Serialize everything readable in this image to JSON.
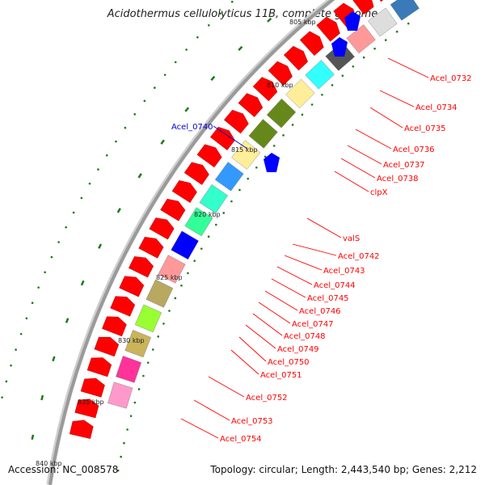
{
  "title": "Acidothermus cellulolyticus 11B, complete genome",
  "footer": {
    "accession_label": "Accession: NC_008578",
    "summary": "Topology: circular; Length: 2,443,540 bp; Genes: 2,212"
  },
  "colors": {
    "backbone": "#9a9a9a",
    "forward_gene": "#ff0000",
    "reverse_gene": "#0000ff",
    "tick": "#1b7a1b",
    "label_forward": "#ff0000",
    "label_reverse": "#0000cc"
  },
  "scale_labels": [
    "805 kbp",
    "810 kbp",
    "815 kbp",
    "820 kbp",
    "825 kbp",
    "830 kbp",
    "835 kbp",
    "840 kbp"
  ],
  "gene_labels": [
    {
      "name": "Acel_0732",
      "strand": "forward"
    },
    {
      "name": "Acel_0734",
      "strand": "forward"
    },
    {
      "name": "Acel_0735",
      "strand": "forward"
    },
    {
      "name": "Acel_0736",
      "strand": "forward"
    },
    {
      "name": "Acel_0737",
      "strand": "forward"
    },
    {
      "name": "Acel_0738",
      "strand": "forward"
    },
    {
      "name": "clpX",
      "strand": "forward"
    },
    {
      "name": "valS",
      "strand": "forward"
    },
    {
      "name": "Acel_0742",
      "strand": "forward"
    },
    {
      "name": "Acel_0743",
      "strand": "forward"
    },
    {
      "name": "Acel_0744",
      "strand": "forward"
    },
    {
      "name": "Acel_0745",
      "strand": "forward"
    },
    {
      "name": "Acel_0746",
      "strand": "forward"
    },
    {
      "name": "Acel_0747",
      "strand": "forward"
    },
    {
      "name": "Acel_0748",
      "strand": "forward"
    },
    {
      "name": "Acel_0749",
      "strand": "forward"
    },
    {
      "name": "Acel_0750",
      "strand": "forward"
    },
    {
      "name": "Acel_0751",
      "strand": "forward"
    },
    {
      "name": "Acel_0752",
      "strand": "forward"
    },
    {
      "name": "Acel_0753",
      "strand": "forward"
    },
    {
      "name": "Acel_0754",
      "strand": "forward"
    },
    {
      "name": "Acel_0740",
      "strand": "reverse"
    }
  ]
}
